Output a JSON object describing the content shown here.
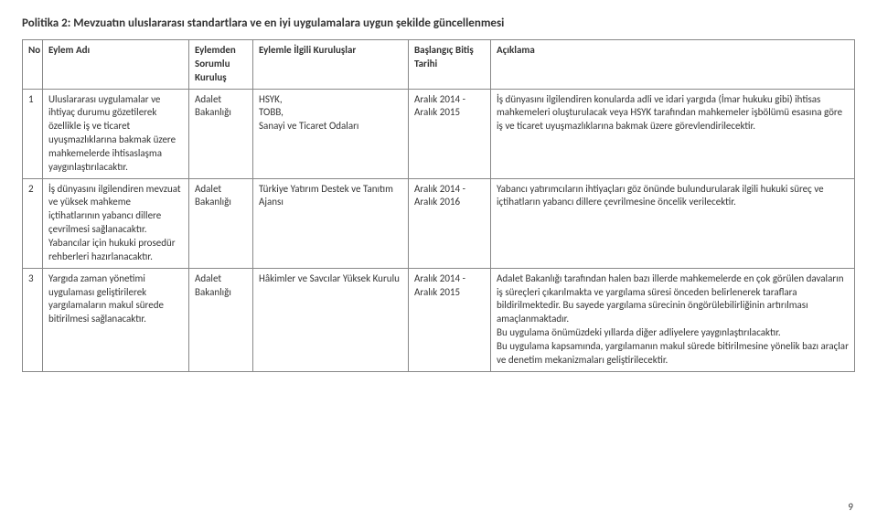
{
  "policy_title": "Politika 2: Mevzuatın uluslararası standartlara ve en iyi uygulamalara uygun şekilde güncellenmesi",
  "headers": {
    "no": "No",
    "action_name": "Eylem Adı",
    "responsible": "Eylemden Sorumlu Kuruluş",
    "related": "Eylemle İlgili Kuruluşlar",
    "dates": "Başlangıç Bitiş Tarihi",
    "description": "Açıklama"
  },
  "rows": [
    {
      "no": "1",
      "action_name": "Uluslararası uygulamalar ve ihtiyaç durumu gözetilerek özellikle iş ve ticaret uyuşmazlıklarına bakmak üzere mahkemelerde ihtisaslaşma yaygınlaştırılacaktır.",
      "responsible": "Adalet Bakanlığı",
      "related": "HSYK,\nTOBB,\nSanayi ve Ticaret Odaları",
      "dates": "Aralık 2014 - Aralık 2015",
      "description": "İş dünyasını ilgilendiren konularda adli ve idari yargıda (İmar hukuku gibi) ihtisas mahkemeleri oluşturulacak veya HSYK tarafından mahkemeler işbölümü esasına göre iş ve ticaret uyuşmazlıklarına bakmak üzere görevlendirilecektir."
    },
    {
      "no": "2",
      "action_name": "İş dünyasını ilgilendiren mevzuat ve yüksek mahkeme içtihatlarının yabancı dillere çevrilmesi sağlanacaktır. Yabancılar için hukuki prosedür rehberleri hazırlanacaktır.",
      "responsible": "Adalet Bakanlığı",
      "related": "Türkiye Yatırım Destek ve Tanıtım Ajansı",
      "dates": "Aralık 2014 - Aralık 2016",
      "description": "Yabancı yatırımcıların ihtiyaçları göz önünde bulundurularak ilgili hukuki süreç ve içtihatların yabancı dillere çevrilmesine öncelik verilecektir."
    },
    {
      "no": "3",
      "action_name": "Yargıda zaman yönetimi uygulaması geliştirilerek yargılamaların makul sürede bitirilmesi sağlanacaktır.",
      "responsible": "Adalet Bakanlığı",
      "related": "Hâkimler ve Savcılar Yüksek Kurulu",
      "dates": "Aralık 2014 - Aralık 2015",
      "description": "Adalet Bakanlığı tarafından halen bazı illerde mahkemelerde en çok görülen davaların iş süreçleri çıkarılmakta ve yargılama süresi önceden belirlenerek taraflara bildirilmektedir. Bu sayede yargılama sürecinin öngörülebilirliğinin artırılması amaçlanmaktadır.\nBu uygulama önümüzdeki yıllarda diğer adliyelere yaygınlaştırılacaktır.\nBu uygulama kapsamında, yargılamanın makul sürede bitirilmesine yönelik bazı araçlar ve denetim mekanizmaları geliştirilecektir."
    }
  ],
  "page_number": "9"
}
